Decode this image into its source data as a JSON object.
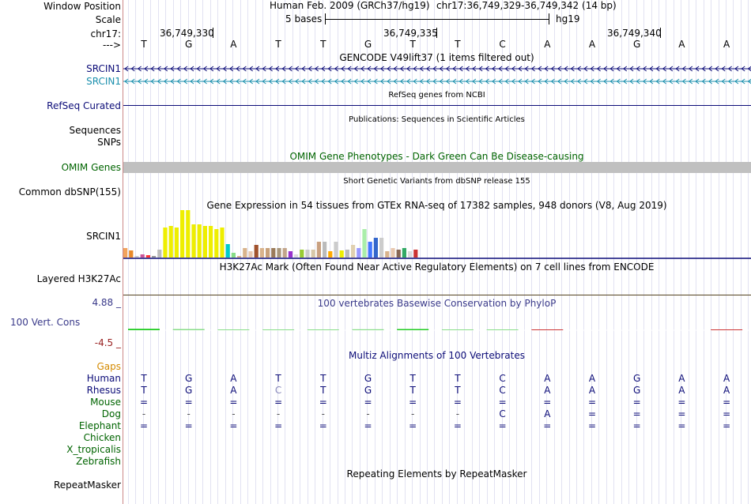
{
  "header": {
    "window_position_label": "Window Position",
    "assembly": "Human Feb. 2009 (GRCh37/hg19)",
    "position": "chr17:36,749,329-36,749,342 (14 bp)",
    "scale_label": "Scale",
    "scale_text": "5 bases",
    "scale_db": "hg19",
    "chrom_label": "chr17:",
    "ticks": [
      "36,749,330",
      "36,749,335",
      "36,749,340"
    ],
    "strand_label": "--->",
    "bases": [
      "T",
      "G",
      "A",
      "T",
      "T",
      "G",
      "T",
      "T",
      "C",
      "A",
      "A",
      "G",
      "A",
      "A"
    ]
  },
  "tracks": {
    "gencode": {
      "title": "GENCODE V49lift37 (1 items filtered out)",
      "items": [
        "SRCIN1",
        "SRCIN1"
      ],
      "colors": [
        "#0c0c78",
        "#1a8fad"
      ]
    },
    "refseq": {
      "title": "RefSeq genes from NCBI",
      "label": "RefSeq Curated"
    },
    "publications": {
      "title": "Publications: Sequences in Scientific Articles",
      "labels": [
        "Sequences",
        "SNPs"
      ]
    },
    "omim": {
      "title": "OMIM Gene Phenotypes - Dark Green Can Be Disease-causing",
      "label": "OMIM Genes"
    },
    "dbsnp": {
      "title": "Short Genetic Variants from dbSNP release 155",
      "label": "Common dbSNP(155)"
    },
    "gtex": {
      "title": "Gene Expression in 54 tissues from GTEx RNA-seq of 17382 samples, 948 donors (V8, Aug 2019)",
      "label": "SRCIN1",
      "values": [
        12,
        9,
        2,
        4,
        3,
        2,
        10,
        38,
        40,
        38,
        60,
        60,
        42,
        42,
        40,
        40,
        36,
        38,
        17,
        6,
        2,
        12,
        8,
        16,
        12,
        12,
        12,
        12,
        12,
        8,
        4,
        10,
        10,
        10,
        20,
        20,
        8,
        20,
        9,
        10,
        16,
        12,
        36,
        20,
        25,
        25,
        8,
        12,
        10,
        12,
        8,
        10
      ],
      "colors": [
        "#f2a35c",
        "#e8892a",
        "#c9c9c9",
        "#cc5599",
        "#ff3333",
        "#999999",
        "#bbbbbb",
        "#eeee00",
        "#eeee00",
        "#eeee00",
        "#eeee00",
        "#eeee00",
        "#eeee00",
        "#eeee00",
        "#eeee00",
        "#eeee00",
        "#eeee00",
        "#eeee00",
        "#00cccc",
        "#88dd88",
        "#d9b38c",
        "#d9b38c",
        "#e8c8b0",
        "#a0522d",
        "#d9b38c",
        "#c8a07a",
        "#9b7b5a",
        "#a8957a",
        "#c2a58a",
        "#9933cc",
        "#dddddd",
        "#99cc33",
        "#cccccc",
        "#d8c8a8",
        "#c9a080",
        "#bbbbbb",
        "#ffaa00",
        "#cccccc",
        "#eeee00",
        "#bbbbbb",
        "#e0d0b0",
        "#9999ff",
        "#aaeeaa",
        "#4477ff",
        "#3366cc",
        "#cccccc",
        "#d9b38c",
        "#e8c8b0",
        "#886655",
        "#33aa66",
        "#dddddd",
        "#cc3333"
      ]
    },
    "h3k27ac": {
      "title": "H3K27Ac Mark (Often Found Near Active Regulatory Elements) on 7 cell lines from ENCODE",
      "label": "Layered H3K27Ac"
    },
    "phylop": {
      "title": "100 vertebrates Basewise Conservation by PhyloP",
      "label": "100 Vert. Cons",
      "max": "4.88 _",
      "min": "-4.5 _",
      "scores": [
        0.6,
        0.5,
        0.1,
        0.2,
        0.1,
        0.4,
        0.5,
        0.2,
        0.1,
        0.3,
        0,
        0,
        0,
        0.2
      ]
    },
    "multiz": {
      "title": "Multiz Alignments of 100 Vertebrates",
      "gaps_label": "Gaps",
      "species": [
        {
          "name": "Human",
          "row": [
            "T",
            "G",
            "A",
            "T",
            "T",
            "G",
            "T",
            "T",
            "C",
            "A",
            "A",
            "G",
            "A",
            "A"
          ]
        },
        {
          "name": "Rhesus",
          "row": [
            "T",
            "G",
            "A",
            "C",
            "T",
            "G",
            "T",
            "T",
            "C",
            "A",
            "A",
            "G",
            "A",
            "A"
          ]
        },
        {
          "name": "Mouse",
          "row": [
            "=",
            "=",
            "=",
            "=",
            "=",
            "=",
            "=",
            "=",
            "=",
            "=",
            "=",
            "=",
            "=",
            "="
          ]
        },
        {
          "name": "Dog",
          "row": [
            "-",
            "-",
            "-",
            "-",
            "-",
            "-",
            "-",
            "-",
            "C",
            "A",
            "=",
            "=",
            "=",
            "="
          ]
        },
        {
          "name": "Elephant",
          "row": [
            "=",
            "=",
            "=",
            "=",
            "=",
            "=",
            "=",
            "=",
            "=",
            "=",
            "=",
            "=",
            "=",
            "="
          ]
        },
        {
          "name": "Chicken",
          "row": []
        },
        {
          "name": "X_tropicalis",
          "row": []
        },
        {
          "name": "Zebrafish",
          "row": []
        }
      ]
    },
    "repeatmasker": {
      "title": "Repeating Elements by RepeatMasker",
      "label": "RepeatMasker"
    }
  }
}
